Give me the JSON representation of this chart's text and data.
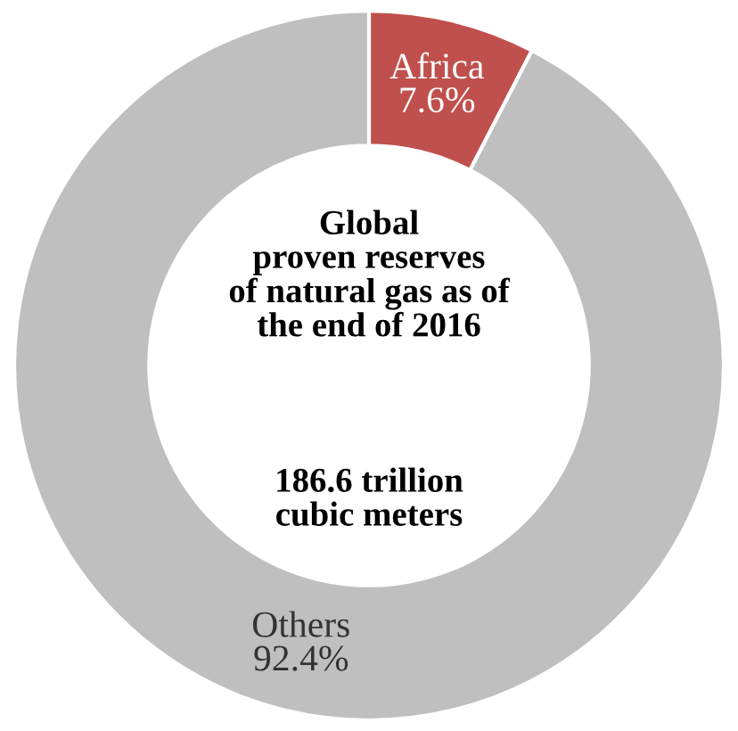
{
  "chart_data": {
    "type": "donut",
    "categories": [
      "Africa",
      "Others"
    ],
    "values": [
      7.6,
      92.4
    ],
    "value_labels": [
      "7.6%",
      "92.4%"
    ],
    "colors": [
      "#c0504d",
      "#bfbfbf"
    ],
    "annotations": [
      "Global\nproven reserves\nof natural gas as of\nthe end of 2016",
      "186.6 trillion\ncubic meters"
    ],
    "legend": false
  }
}
